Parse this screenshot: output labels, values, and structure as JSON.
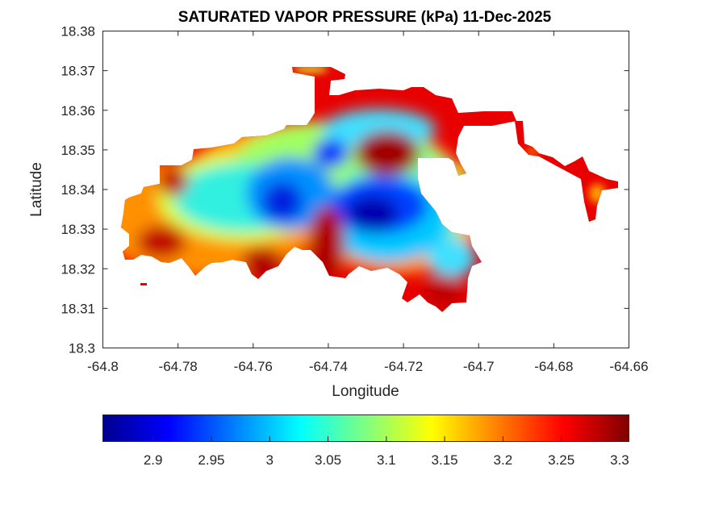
{
  "chart_data": {
    "type": "heatmap",
    "title": "SATURATED VAPOR PRESSURE (kPa) 11-Dec-2025",
    "xlabel": "Longitude",
    "ylabel": "Latitude",
    "xlim": [
      -64.8,
      -64.66
    ],
    "ylim": [
      18.3,
      18.38
    ],
    "xticks": [
      "-64.8",
      "-64.78",
      "-64.76",
      "-64.74",
      "-64.72",
      "-64.7",
      "-64.68",
      "-64.66"
    ],
    "yticks": [
      "18.3",
      "18.31",
      "18.32",
      "18.33",
      "18.34",
      "18.35",
      "18.36",
      "18.37",
      "18.38"
    ],
    "colormap": "jet",
    "colorbar": {
      "location": "bottom",
      "clim": [
        2.857,
        3.308
      ],
      "ticks": [
        "2.9",
        "2.95",
        "3",
        "3.05",
        "3.1",
        "3.15",
        "3.2",
        "3.25",
        "3.3"
      ]
    },
    "grid": false
  },
  "colors": {
    "low": "#00008f",
    "mid": "#00ffff",
    "high": "#800000"
  }
}
